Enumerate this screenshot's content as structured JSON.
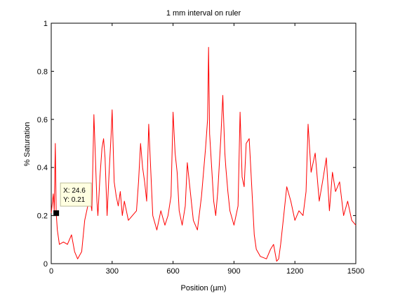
{
  "chart_data": {
    "type": "line",
    "title": "1 mm interval on ruler",
    "xlabel": "Position (µm)",
    "ylabel": "% Saturation",
    "xlim": [
      0,
      1500
    ],
    "ylim": [
      0,
      1
    ],
    "xticks": [
      0,
      300,
      600,
      900,
      1200,
      1500
    ],
    "xtick_labels": [
      "0",
      "300",
      "600",
      "900",
      "1200",
      "1500"
    ],
    "yticks": [
      0,
      0.2,
      0.4,
      0.6,
      0.8,
      1
    ],
    "ytick_labels": [
      "0",
      "0.2",
      "0.4",
      "0.6",
      "0.8",
      "1"
    ],
    "grid": false,
    "series": [
      {
        "color": "#ff0000",
        "x": [
          0,
          10,
          15,
          20,
          24.6,
          30,
          40,
          60,
          80,
          100,
          115,
          130,
          150,
          165,
          180,
          190,
          200,
          210,
          225,
          230,
          240,
          250,
          258,
          265,
          275,
          285,
          295,
          300,
          310,
          320,
          330,
          340,
          350,
          360,
          370,
          380,
          400,
          420,
          430,
          440,
          450,
          460,
          470,
          480,
          500,
          520,
          540,
          560,
          575,
          590,
          600,
          610,
          620,
          630,
          645,
          660,
          670,
          680,
          700,
          720,
          740,
          760,
          770,
          775,
          780,
          790,
          800,
          810,
          820,
          835,
          845,
          855,
          860,
          870,
          880,
          900,
          920,
          930,
          940,
          950,
          960,
          975,
          985,
          1000,
          1010,
          1030,
          1060,
          1080,
          1095,
          1110,
          1120,
          1130,
          1145,
          1160,
          1180,
          1200,
          1220,
          1240,
          1255,
          1265,
          1280,
          1300,
          1320,
          1340,
          1355,
          1370,
          1385,
          1400,
          1420,
          1440,
          1460,
          1480,
          1500
        ],
        "y": [
          0.21,
          0.29,
          0.22,
          0.5,
          0.21,
          0.14,
          0.08,
          0.09,
          0.08,
          0.12,
          0.05,
          0.02,
          0.05,
          0.18,
          0.24,
          0.28,
          0.22,
          0.62,
          0.26,
          0.2,
          0.36,
          0.48,
          0.52,
          0.44,
          0.2,
          0.38,
          0.54,
          0.64,
          0.34,
          0.28,
          0.24,
          0.3,
          0.2,
          0.26,
          0.22,
          0.18,
          0.2,
          0.22,
          0.34,
          0.5,
          0.4,
          0.34,
          0.26,
          0.58,
          0.2,
          0.14,
          0.22,
          0.16,
          0.2,
          0.28,
          0.63,
          0.46,
          0.38,
          0.22,
          0.16,
          0.24,
          0.42,
          0.34,
          0.18,
          0.14,
          0.28,
          0.48,
          0.6,
          0.9,
          0.54,
          0.4,
          0.26,
          0.2,
          0.3,
          0.52,
          0.7,
          0.46,
          0.4,
          0.3,
          0.22,
          0.16,
          0.24,
          0.63,
          0.36,
          0.32,
          0.5,
          0.52,
          0.36,
          0.12,
          0.06,
          0.03,
          0.02,
          0.06,
          0.08,
          0.01,
          0.02,
          0.08,
          0.2,
          0.32,
          0.26,
          0.18,
          0.22,
          0.2,
          0.3,
          0.58,
          0.38,
          0.46,
          0.26,
          0.36,
          0.44,
          0.22,
          0.38,
          0.3,
          0.34,
          0.2,
          0.26,
          0.18,
          0.16
        ]
      }
    ],
    "datatip": {
      "x_text": "X: 24.6",
      "y_text": "Y: 0.21",
      "x": 24.6,
      "y": 0.21
    }
  }
}
